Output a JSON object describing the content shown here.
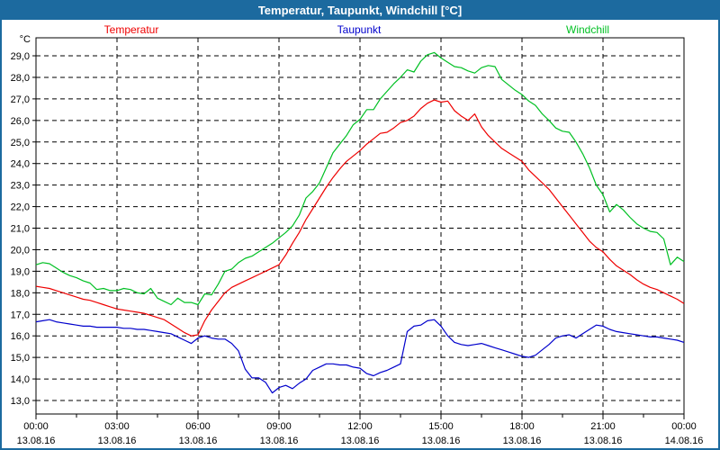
{
  "window": {
    "title": "Temperatur, Taupunkt, Windchill [°C]",
    "colors": {
      "frame": "#1C6A9F",
      "titlebar_bg": "#1C6A9F",
      "titlebar_text": "#FFFFFF",
      "plot_background": "#FFFFFF",
      "grid": "#000000"
    }
  },
  "chart_data": {
    "type": "line",
    "title": "Temperatur, Taupunkt, Windchill [°C]",
    "ylabel_unit": "°C",
    "legend_position": "top",
    "grid": "dashed",
    "y_axis": {
      "min": 13.0,
      "max": 29.0,
      "tick_step": 1.0,
      "tick_labels": [
        "29,0",
        "28,0",
        "27,0",
        "26,0",
        "25,0",
        "24,0",
        "23,0",
        "22,0",
        "21,0",
        "20,0",
        "19,0",
        "18,0",
        "17,0",
        "16,0",
        "15,0",
        "14,0",
        "13,0"
      ]
    },
    "x_axis": {
      "range_hours": [
        0,
        24
      ],
      "major_tick_interval_hours": 3,
      "minor_tick_interval_hours": 1.5,
      "ticks": [
        {
          "time": "00:00",
          "date": "13.08.16"
        },
        {
          "time": "03:00",
          "date": "13.08.16"
        },
        {
          "time": "06:00",
          "date": "13.08.16"
        },
        {
          "time": "09:00",
          "date": "13.08.16"
        },
        {
          "time": "12:00",
          "date": "13.08.16"
        },
        {
          "time": "15:00",
          "date": "13.08.16"
        },
        {
          "time": "18:00",
          "date": "13.08.16"
        },
        {
          "time": "21:00",
          "date": "13.08.16"
        },
        {
          "time": "00:00",
          "date": "14.08.16"
        }
      ]
    },
    "x_hours_start": 0,
    "x_hours_step": 0.25,
    "series": [
      {
        "name": "Temperatur",
        "color": "#EE0000",
        "values": [
          18.3,
          18.25,
          18.2,
          18.1,
          18.0,
          17.9,
          17.8,
          17.7,
          17.65,
          17.55,
          17.45,
          17.35,
          17.25,
          17.2,
          17.15,
          17.1,
          17.05,
          16.95,
          16.85,
          16.75,
          16.55,
          16.35,
          16.15,
          16.0,
          16.05,
          16.7,
          17.2,
          17.6,
          18.0,
          18.25,
          18.4,
          18.55,
          18.7,
          18.85,
          19.0,
          19.15,
          19.3,
          19.75,
          20.3,
          20.8,
          21.4,
          21.9,
          22.4,
          22.9,
          23.35,
          23.75,
          24.1,
          24.35,
          24.6,
          24.9,
          25.15,
          25.4,
          25.45,
          25.65,
          25.9,
          26.0,
          26.2,
          26.55,
          26.8,
          26.95,
          26.85,
          26.9,
          26.45,
          26.2,
          26.0,
          26.3,
          25.7,
          25.3,
          25.0,
          24.7,
          24.5,
          24.3,
          24.1,
          23.7,
          23.4,
          23.1,
          22.8,
          22.4,
          22.0,
          21.6,
          21.2,
          20.8,
          20.4,
          20.1,
          19.9,
          19.55,
          19.25,
          19.05,
          18.85,
          18.6,
          18.4,
          18.25,
          18.15,
          18.0,
          17.85,
          17.7,
          17.5
        ]
      },
      {
        "name": "Taupunkt",
        "color": "#0000CC",
        "values": [
          16.65,
          16.7,
          16.75,
          16.65,
          16.6,
          16.55,
          16.5,
          16.45,
          16.45,
          16.4,
          16.4,
          16.4,
          16.4,
          16.35,
          16.35,
          16.3,
          16.3,
          16.25,
          16.2,
          16.15,
          16.1,
          15.95,
          15.8,
          15.65,
          15.9,
          16.0,
          15.9,
          15.85,
          15.85,
          15.65,
          15.3,
          14.45,
          14.05,
          14.05,
          13.85,
          13.35,
          13.6,
          13.7,
          13.55,
          13.8,
          14.0,
          14.4,
          14.55,
          14.7,
          14.7,
          14.65,
          14.65,
          14.55,
          14.5,
          14.25,
          14.15,
          14.3,
          14.4,
          14.55,
          14.7,
          16.2,
          16.45,
          16.5,
          16.7,
          16.75,
          16.45,
          16.0,
          15.7,
          15.6,
          15.55,
          15.6,
          15.65,
          15.55,
          15.45,
          15.35,
          15.25,
          15.15,
          15.05,
          15.0,
          15.1,
          15.35,
          15.6,
          15.9,
          16.0,
          16.05,
          15.9,
          16.1,
          16.3,
          16.5,
          16.45,
          16.3,
          16.2,
          16.15,
          16.1,
          16.05,
          16.0,
          15.95,
          15.95,
          15.9,
          15.85,
          15.8,
          15.7
        ]
      },
      {
        "name": "Windchill",
        "color": "#00C023",
        "values": [
          19.3,
          19.4,
          19.35,
          19.15,
          18.95,
          18.8,
          18.7,
          18.55,
          18.45,
          18.15,
          18.2,
          18.1,
          18.1,
          18.2,
          18.15,
          18.0,
          17.95,
          18.2,
          17.75,
          17.6,
          17.45,
          17.75,
          17.55,
          17.55,
          17.45,
          17.95,
          17.9,
          18.4,
          19.0,
          19.1,
          19.4,
          19.6,
          19.7,
          19.9,
          20.1,
          20.3,
          20.55,
          20.8,
          21.1,
          21.6,
          22.4,
          22.7,
          23.1,
          23.8,
          24.5,
          24.9,
          25.3,
          25.8,
          26.05,
          26.5,
          26.5,
          27.0,
          27.35,
          27.7,
          28.0,
          28.35,
          28.25,
          28.75,
          29.05,
          29.15,
          28.9,
          28.7,
          28.5,
          28.45,
          28.3,
          28.2,
          28.45,
          28.55,
          28.5,
          27.9,
          27.65,
          27.4,
          27.2,
          26.9,
          26.7,
          26.3,
          26.0,
          25.65,
          25.5,
          25.45,
          25.0,
          24.45,
          23.8,
          23.0,
          22.55,
          21.75,
          22.1,
          21.85,
          21.5,
          21.2,
          21.0,
          20.85,
          20.8,
          20.5,
          19.3,
          19.65,
          19.45
        ]
      }
    ]
  }
}
